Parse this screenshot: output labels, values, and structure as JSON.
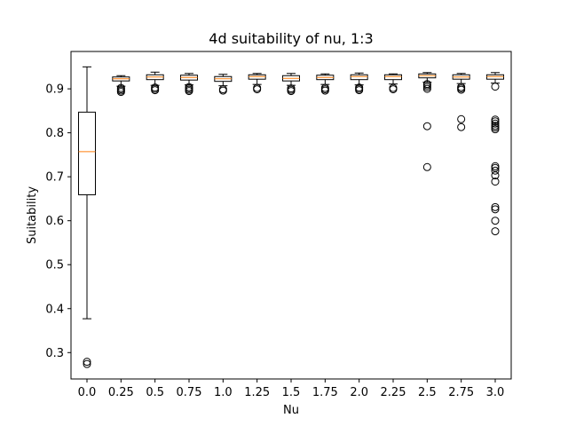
{
  "chart_data": {
    "type": "boxplot",
    "title": "4d suitability of nu, 1:3",
    "xlabel": "Nu",
    "ylabel": "Suitability",
    "ylim": [
      0.24,
      0.985
    ],
    "yticks": [
      0.3,
      0.4,
      0.5,
      0.6,
      0.7,
      0.8,
      0.9
    ],
    "ytick_labels": [
      "0.3",
      "0.4",
      "0.5",
      "0.6",
      "0.7",
      "0.8",
      "0.9"
    ],
    "categories": [
      "0.0",
      "0.25",
      "0.5",
      "0.75",
      "1.0",
      "1.25",
      "1.5",
      "1.75",
      "2.0",
      "2.25",
      "2.5",
      "2.75",
      "3.0"
    ],
    "grid": false,
    "legend": "none",
    "colors": {
      "box": "#000000",
      "median": "#ff7f0e",
      "flier": "#000000"
    },
    "boxes": [
      {
        "category": "0.0",
        "whislo": 0.377,
        "q1": 0.659,
        "med": 0.757,
        "q3": 0.847,
        "whishi": 0.95,
        "fliers": [
          0.274,
          0.279
        ]
      },
      {
        "category": "0.25",
        "whislo": 0.906,
        "q1": 0.918,
        "med": 0.923,
        "q3": 0.927,
        "whishi": 0.93,
        "fliers": [
          0.893,
          0.896,
          0.899,
          0.902
        ]
      },
      {
        "category": "0.5",
        "whislo": 0.908,
        "q1": 0.921,
        "med": 0.927,
        "q3": 0.932,
        "whishi": 0.938,
        "fliers": [
          0.897,
          0.9,
          0.903
        ]
      },
      {
        "category": "0.75",
        "whislo": 0.909,
        "q1": 0.92,
        "med": 0.926,
        "q3": 0.931,
        "whishi": 0.935,
        "fliers": [
          0.895,
          0.898,
          0.901,
          0.904
        ]
      },
      {
        "category": "1.0",
        "whislo": 0.907,
        "q1": 0.917,
        "med": 0.923,
        "q3": 0.928,
        "whishi": 0.933,
        "fliers": [
          0.896,
          0.899
        ]
      },
      {
        "category": "1.25",
        "whislo": 0.91,
        "q1": 0.922,
        "med": 0.928,
        "q3": 0.932,
        "whishi": 0.935,
        "fliers": [
          0.899,
          0.902
        ]
      },
      {
        "category": "1.5",
        "whislo": 0.908,
        "q1": 0.918,
        "med": 0.924,
        "q3": 0.93,
        "whishi": 0.935,
        "fliers": [
          0.895,
          0.898,
          0.901
        ]
      },
      {
        "category": "1.75",
        "whislo": 0.91,
        "q1": 0.921,
        "med": 0.926,
        "q3": 0.931,
        "whishi": 0.934,
        "fliers": [
          0.896,
          0.899,
          0.902
        ]
      },
      {
        "category": "2.0",
        "whislo": 0.909,
        "q1": 0.921,
        "med": 0.928,
        "q3": 0.932,
        "whishi": 0.936,
        "fliers": [
          0.897,
          0.9,
          0.903
        ]
      },
      {
        "category": "2.25",
        "whislo": 0.911,
        "q1": 0.921,
        "med": 0.928,
        "q3": 0.932,
        "whishi": 0.934,
        "fliers": [
          0.899,
          0.902
        ]
      },
      {
        "category": "2.5",
        "whislo": 0.915,
        "q1": 0.925,
        "med": 0.93,
        "q3": 0.934,
        "whishi": 0.937,
        "fliers": [
          0.722,
          0.815,
          0.9,
          0.904,
          0.908,
          0.911
        ]
      },
      {
        "category": "2.75",
        "whislo": 0.912,
        "q1": 0.922,
        "med": 0.927,
        "q3": 0.932,
        "whishi": 0.935,
        "fliers": [
          0.813,
          0.831,
          0.898,
          0.901,
          0.904
        ]
      },
      {
        "category": "3.0",
        "whislo": 0.913,
        "q1": 0.922,
        "med": 0.928,
        "q3": 0.932,
        "whishi": 0.937,
        "fliers": [
          0.576,
          0.6,
          0.626,
          0.631,
          0.689,
          0.703,
          0.714,
          0.72,
          0.724,
          0.808,
          0.812,
          0.816,
          0.821,
          0.826,
          0.83,
          0.905
        ]
      }
    ]
  }
}
